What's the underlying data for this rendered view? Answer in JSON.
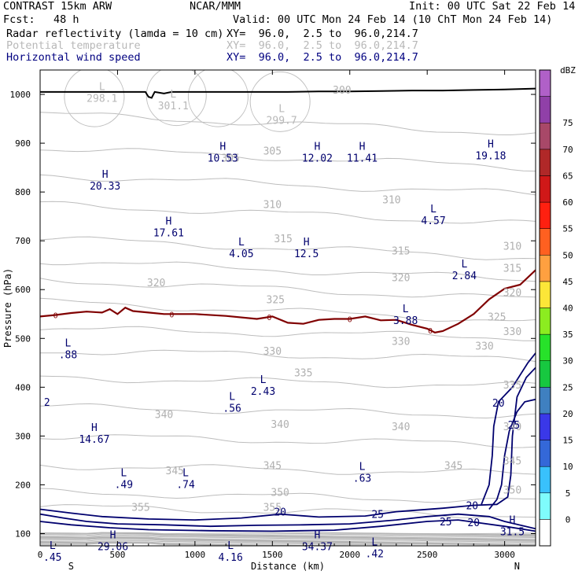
{
  "header": {
    "left_title": "CONTRAST 15km ARW",
    "center_title": "NCAR/MMM",
    "init": "Init: 00 UTC Sat 22 Feb 14",
    "fcst_label": "Fcst:",
    "fcst_value": "48 h",
    "valid": "Valid: 00 UTC Mon 24 Feb 14 (10 ChT Mon 24 Feb 14)",
    "fields": [
      {
        "name": "Radar reflectivity (lamda = 10 cm)",
        "xy": "XY=  96.0,  2.5 to  96.0,214.7"
      },
      {
        "name": "Potential temperature",
        "xy": "XY=  96.0,  2.5 to  96.0,214.7"
      },
      {
        "name": "Horizontal wind speed",
        "xy": "XY=  96.0,  2.5 to  96.0,214.7"
      }
    ]
  },
  "chart_data": {
    "type": "cross-section",
    "xlabel": "Distance (km)",
    "ylabel": "Pressure (hPa)",
    "xlim": [
      0,
      3200
    ],
    "ylim": [
      1050,
      75
    ],
    "xticks": [
      0,
      500,
      1000,
      1500,
      2000,
      2500,
      3000
    ],
    "yticks": [
      100,
      200,
      300,
      400,
      500,
      600,
      700,
      800,
      900,
      1000
    ],
    "x_end_labels": [
      "S",
      "N"
    ],
    "colorbar": {
      "unit": "dBZ",
      "levels": [
        0,
        5,
        10,
        15,
        20,
        25,
        30,
        35,
        40,
        45,
        50,
        55,
        60,
        65,
        70,
        75
      ],
      "colors": [
        "#ffffff",
        "#7ffcfc",
        "#39c1fc",
        "#3468d8",
        "#3a38e8",
        "#3f80c0",
        "#17c840",
        "#27e22a",
        "#8cec20",
        "#fce638",
        "#ffa040",
        "#ff6020",
        "#ff2010",
        "#d01818",
        "#b02828",
        "#a84868",
        "#9040a8",
        "#b060c8"
      ]
    },
    "theta_labels": [
      {
        "x": 650,
        "p": 155,
        "text": "355"
      },
      {
        "x": 1500,
        "p": 155,
        "text": "355"
      },
      {
        "x": 1550,
        "p": 185,
        "text": "350"
      },
      {
        "x": 3050,
        "p": 190,
        "text": "350"
      },
      {
        "x": 870,
        "p": 230,
        "text": "345"
      },
      {
        "x": 1500,
        "p": 240,
        "text": "345"
      },
      {
        "x": 2670,
        "p": 240,
        "text": "345"
      },
      {
        "x": 3050,
        "p": 250,
        "text": "345"
      },
      {
        "x": 800,
        "p": 345,
        "text": "340"
      },
      {
        "x": 1550,
        "p": 325,
        "text": "340"
      },
      {
        "x": 2330,
        "p": 320,
        "text": "340"
      },
      {
        "x": 3050,
        "p": 320,
        "text": "340"
      },
      {
        "x": 1700,
        "p": 430,
        "text": "335"
      },
      {
        "x": 3050,
        "p": 405,
        "text": "335"
      },
      {
        "x": 1500,
        "p": 475,
        "text": "330"
      },
      {
        "x": 2330,
        "p": 495,
        "text": "330"
      },
      {
        "x": 2870,
        "p": 485,
        "text": "330"
      },
      {
        "x": 3050,
        "p": 515,
        "text": "330"
      },
      {
        "x": 2950,
        "p": 545,
        "text": "325"
      },
      {
        "x": 1520,
        "p": 580,
        "text": "325"
      },
      {
        "x": 750,
        "p": 615,
        "text": "320"
      },
      {
        "x": 2330,
        "p": 625,
        "text": "320"
      },
      {
        "x": 3050,
        "p": 595,
        "text": "320"
      },
      {
        "x": 3050,
        "p": 645,
        "text": "315"
      },
      {
        "x": 1570,
        "p": 705,
        "text": "315"
      },
      {
        "x": 2330,
        "p": 680,
        "text": "315"
      },
      {
        "x": 3050,
        "p": 690,
        "text": "310"
      },
      {
        "x": 1500,
        "p": 775,
        "text": "310"
      },
      {
        "x": 2270,
        "p": 785,
        "text": "310"
      },
      {
        "x": 1230,
        "p": 870,
        "text": "305"
      },
      {
        "x": 1500,
        "p": 885,
        "text": "305"
      },
      {
        "x": 1950,
        "p": 1010,
        "text": "300"
      }
    ],
    "wind_labels": [
      {
        "x": 1550,
        "p": 145,
        "text": "20"
      },
      {
        "x": 2180,
        "p": 140,
        "text": "25"
      },
      {
        "x": 2620,
        "p": 125,
        "text": "25"
      },
      {
        "x": 2800,
        "p": 123,
        "text": "20"
      },
      {
        "x": 2790,
        "p": 158,
        "text": "20"
      },
      {
        "x": 3060,
        "p": 323,
        "text": "25"
      },
      {
        "x": 2960,
        "p": 368,
        "text": "20"
      }
    ],
    "extrema": [
      {
        "type": "L",
        "x": 80,
        "p": 75,
        "value": ".45"
      },
      {
        "type": "H",
        "x": 470,
        "p": 97,
        "value": "29.06"
      },
      {
        "type": "L",
        "x": 1230,
        "p": 75,
        "value": "4.16"
      },
      {
        "type": "H",
        "x": 1790,
        "p": 97,
        "value": "34.37"
      },
      {
        "type": "L",
        "x": 2160,
        "p": 82,
        "value": ".42"
      },
      {
        "type": "H",
        "x": 3050,
        "p": 127,
        "value": "31.5"
      },
      {
        "type": "L",
        "x": 540,
        "p": 224,
        "value": ".49"
      },
      {
        "type": "L",
        "x": 940,
        "p": 224,
        "value": ".74"
      },
      {
        "type": "L",
        "x": 2080,
        "p": 237,
        "value": ".63"
      },
      {
        "type": "H",
        "x": 350,
        "p": 317,
        "value": "14.67"
      },
      {
        "type": "L",
        "x": 1240,
        "p": 380,
        "value": ".56"
      },
      {
        "type": "L",
        "x": 1440,
        "p": 415,
        "value": "2.43"
      },
      {
        "type": "L",
        "x": 180,
        "p": 490,
        "value": ".88"
      },
      {
        "type": "L",
        "x": 2360,
        "p": 560,
        "value": "3.88"
      },
      {
        "type": "L",
        "x": 2740,
        "p": 652,
        "value": "2.84"
      },
      {
        "type": "L",
        "x": 1300,
        "p": 697,
        "value": "4.05"
      },
      {
        "type": "H",
        "x": 1720,
        "p": 697,
        "value": "12.5"
      },
      {
        "type": "H",
        "x": 830,
        "p": 740,
        "value": "17.61"
      },
      {
        "type": "L",
        "x": 2540,
        "p": 765,
        "value": "4.57"
      },
      {
        "type": "H",
        "x": 420,
        "p": 836,
        "value": "20.33"
      },
      {
        "type": "H",
        "x": 1180,
        "p": 893,
        "value": "10.53"
      },
      {
        "type": "H",
        "x": 1790,
        "p": 893,
        "value": "12.02"
      },
      {
        "type": "H",
        "x": 2080,
        "p": 893,
        "value": "11.41"
      },
      {
        "type": "H",
        "x": 2910,
        "p": 898,
        "value": "19.18"
      },
      {
        "type": "L",
        "x": 1560,
        "p": 970,
        "value": "299.7"
      },
      {
        "type": "L",
        "x": 860,
        "p": 1000,
        "value": "301.1"
      },
      {
        "type": "L",
        "x": 400,
        "p": 1015,
        "value": "298.1"
      }
    ],
    "partial_labels": [
      {
        "x": 25,
        "p": 370,
        "text": "2"
      }
    ],
    "freezing_level": {
      "label": "0",
      "points": [
        [
          0,
          545
        ],
        [
          100,
          548
        ],
        [
          200,
          552
        ],
        [
          300,
          555
        ],
        [
          400,
          553
        ],
        [
          450,
          560
        ],
        [
          500,
          550
        ],
        [
          550,
          563
        ],
        [
          600,
          556
        ],
        [
          700,
          553
        ],
        [
          800,
          550
        ],
        [
          900,
          550
        ],
        [
          1000,
          550
        ],
        [
          1200,
          546
        ],
        [
          1400,
          540
        ],
        [
          1500,
          545
        ],
        [
          1600,
          532
        ],
        [
          1700,
          530
        ],
        [
          1800,
          538
        ],
        [
          1900,
          540
        ],
        [
          2000,
          540
        ],
        [
          2100,
          545
        ],
        [
          2200,
          537
        ],
        [
          2300,
          538
        ],
        [
          2400,
          528
        ],
        [
          2500,
          520
        ],
        [
          2550,
          512
        ],
        [
          2600,
          515
        ],
        [
          2700,
          530
        ],
        [
          2800,
          550
        ],
        [
          2900,
          580
        ],
        [
          3000,
          602
        ],
        [
          3100,
          610
        ],
        [
          3200,
          640
        ]
      ]
    },
    "surface_pressure": {
      "points": [
        [
          0,
          1005
        ],
        [
          200,
          1005
        ],
        [
          400,
          1005
        ],
        [
          600,
          1005
        ],
        [
          680,
          1005
        ],
        [
          700,
          995
        ],
        [
          720,
          993
        ],
        [
          740,
          1005
        ],
        [
          800,
          1002
        ],
        [
          850,
          1005
        ],
        [
          1000,
          1005
        ],
        [
          1200,
          1005
        ],
        [
          1400,
          1005
        ],
        [
          1600,
          1005
        ],
        [
          1800,
          1006
        ],
        [
          2000,
          1006
        ],
        [
          2200,
          1007
        ],
        [
          2400,
          1008
        ],
        [
          2600,
          1008
        ],
        [
          2800,
          1009
        ],
        [
          3000,
          1010
        ],
        [
          3200,
          1012
        ]
      ]
    }
  }
}
